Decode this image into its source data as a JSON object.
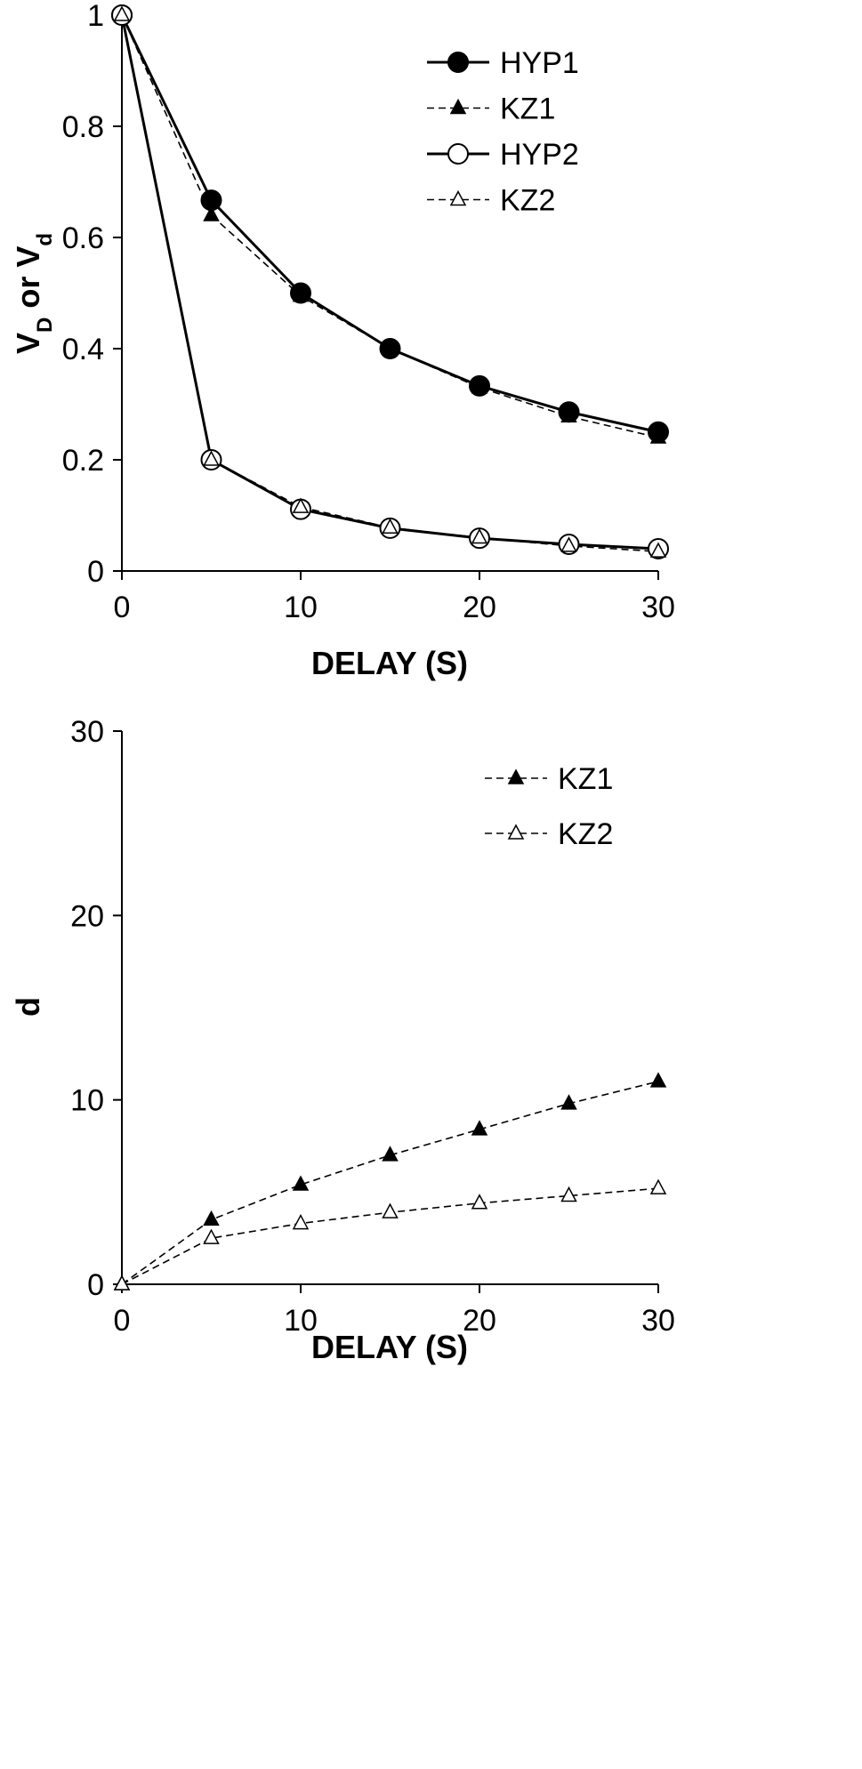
{
  "chart_data": [
    {
      "type": "line",
      "title": "",
      "xlabel": "DELAY (S)",
      "ylabel_main": "V",
      "ylabel_sub1": "D",
      "ylabel_mid": " or V",
      "ylabel_sub2": "d",
      "xlim": [
        0,
        30
      ],
      "ylim": [
        0,
        1
      ],
      "xticks": [
        "0",
        "10",
        "20",
        "30"
      ],
      "yticks": [
        "0",
        "0.2",
        "0.4",
        "0.6",
        "0.8",
        "1"
      ],
      "grid": false,
      "legend_position": "top-right",
      "x": [
        0,
        5,
        10,
        15,
        20,
        25,
        30
      ],
      "series": [
        {
          "name": "HYP1",
          "values": [
            1,
            0.667,
            0.5,
            0.4,
            0.333,
            0.286,
            0.25
          ],
          "marker": "filled-circle",
          "line": "solid"
        },
        {
          "name": "KZ1",
          "values": [
            1,
            0.64,
            0.495,
            0.4,
            0.33,
            0.278,
            0.24
          ],
          "marker": "filled-triangle",
          "line": "dashed"
        },
        {
          "name": "HYP2",
          "values": [
            1,
            0.2,
            0.111,
            0.077,
            0.059,
            0.048,
            0.04
          ],
          "marker": "open-circle",
          "line": "solid"
        },
        {
          "name": "KZ2",
          "values": [
            1,
            0.2,
            0.115,
            0.078,
            0.06,
            0.045,
            0.035
          ],
          "marker": "open-triangle",
          "line": "dashed"
        }
      ]
    },
    {
      "type": "line",
      "title": "",
      "xlabel": "DELAY (S)",
      "ylabel": "d",
      "xlim": [
        0,
        30
      ],
      "ylim": [
        0,
        30
      ],
      "xticks": [
        "0",
        "10",
        "20",
        "30"
      ],
      "yticks": [
        "0",
        "10",
        "20",
        "30"
      ],
      "grid": false,
      "legend_position": "top-right",
      "x": [
        0,
        5,
        10,
        15,
        20,
        25,
        30
      ],
      "series": [
        {
          "name": "KZ1",
          "values": [
            0,
            3.5,
            5.4,
            7.0,
            8.4,
            9.8,
            11.0
          ],
          "marker": "filled-triangle",
          "line": "dashed"
        },
        {
          "name": "KZ2",
          "values": [
            0,
            2.5,
            3.3,
            3.9,
            4.4,
            4.8,
            5.2
          ],
          "marker": "open-triangle",
          "line": "dashed"
        }
      ]
    }
  ]
}
